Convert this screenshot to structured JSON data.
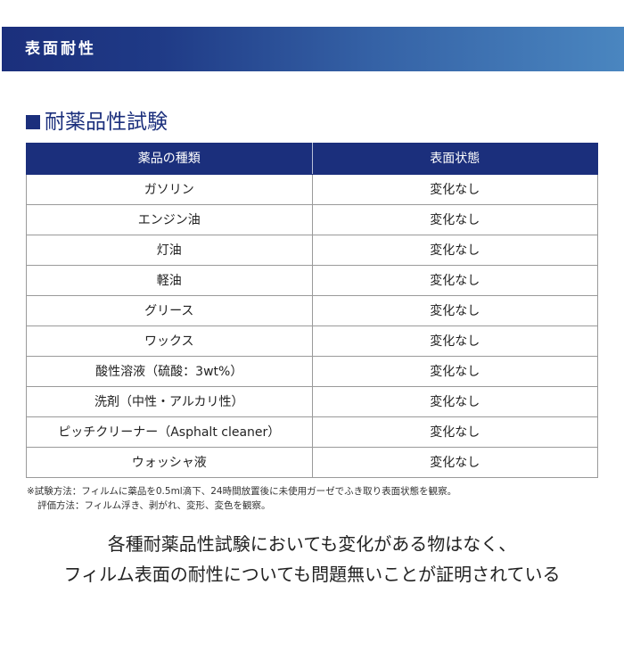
{
  "banner": {
    "title": "表面耐性"
  },
  "section": {
    "title": "耐薬品性試験"
  },
  "table": {
    "headers": [
      "薬品の種類",
      "表面状態"
    ],
    "rows": [
      [
        "ガソリン",
        "変化なし"
      ],
      [
        "エンジン油",
        "変化なし"
      ],
      [
        "灯油",
        "変化なし"
      ],
      [
        "軽油",
        "変化なし"
      ],
      [
        "グリース",
        "変化なし"
      ],
      [
        "ワックス",
        "変化なし"
      ],
      [
        "酸性溶液（硫酸：3wt%）",
        "変化なし"
      ],
      [
        "洗剤（中性・アルカリ性）",
        "変化なし"
      ],
      [
        "ピッチクリーナー（Asphalt cleaner）",
        "変化なし"
      ],
      [
        "ウォッシャ液",
        "変化なし"
      ]
    ]
  },
  "notes": [
    "※試験方法：フィルムに薬品を0.5ml滴下、24時間放置後に未使用ガーゼでふき取り表面状態を観察。",
    "評価方法：フィルム浮き、剥がれ、変形、変色を観察。"
  ],
  "conclusion": [
    "各種耐薬品性試験においても変化がある物はなく、",
    "フィルム表面の耐性についても問題無いことが証明されている"
  ],
  "colors": {
    "brand": "#1b2f7c",
    "gradient_end": "#4a86c0"
  }
}
